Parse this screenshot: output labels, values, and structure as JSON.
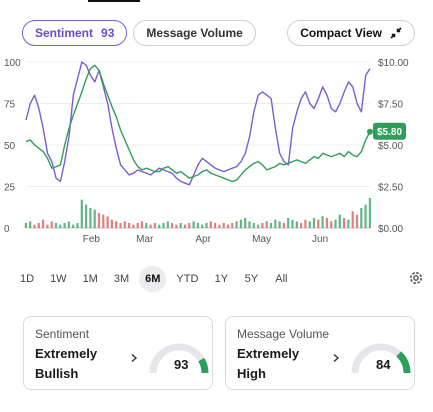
{
  "tabs": [
    {
      "label": "Sentiment",
      "count": "93",
      "active": true
    },
    {
      "label": "Message Volume",
      "active": false
    }
  ],
  "compact_view": {
    "label": "Compact View",
    "icon": "collapse-arrows-icon"
  },
  "chart_data": {
    "type": "line",
    "x_labels": [
      "Feb",
      "Mar",
      "Apr",
      "May",
      "Jun"
    ],
    "left_axis": {
      "ticks": [
        "100",
        "75",
        "50",
        "25",
        "0"
      ],
      "range": [
        0,
        100
      ]
    },
    "right_axis": {
      "ticks": [
        "$10.00",
        "$7.50",
        "$5.00",
        "$2.50",
        "$0.00"
      ],
      "range": [
        0,
        10
      ]
    },
    "price_label": "$5.80",
    "series": [
      {
        "role": "sentiment",
        "color": "#7b5cd6",
        "values": [
          65,
          75,
          80,
          72,
          60,
          45,
          40,
          30,
          28,
          40,
          55,
          80,
          90,
          100,
          98,
          92,
          88,
          95,
          85,
          75,
          60,
          48,
          38,
          35,
          32,
          33,
          35,
          34,
          33,
          32,
          34,
          36,
          35,
          34,
          33,
          30,
          28,
          27,
          26,
          32,
          38,
          42,
          40,
          38,
          36,
          35,
          34,
          35,
          36,
          37,
          40,
          45,
          55,
          70,
          80,
          82,
          80,
          78,
          60,
          45,
          40,
          38,
          60,
          70,
          78,
          82,
          75,
          72,
          78,
          85,
          80,
          72,
          70,
          75,
          82,
          88,
          85,
          75,
          70,
          92,
          96
        ]
      },
      {
        "role": "price",
        "color": "#2e9e5b",
        "values": [
          5.2,
          5.3,
          5.0,
          4.8,
          4.6,
          4.2,
          3.6,
          3.7,
          3.8,
          5.0,
          6.0,
          6.8,
          7.5,
          8.2,
          9.0,
          9.6,
          9.8,
          9.5,
          8.7,
          8.0,
          7.3,
          6.7,
          5.9,
          5.3,
          4.7,
          4.1,
          3.7,
          3.5,
          3.6,
          3.5,
          3.4,
          3.4,
          3.6,
          3.7,
          3.5,
          3.3,
          3.4,
          3.2,
          3.0,
          3.1,
          3.2,
          3.4,
          3.5,
          3.3,
          3.2,
          3.1,
          3.0,
          2.9,
          2.8,
          2.9,
          3.2,
          3.5,
          3.7,
          3.9,
          4.0,
          3.8,
          3.5,
          3.6,
          3.7,
          3.9,
          3.8,
          3.9,
          4.0,
          4.1,
          4.0,
          3.9,
          4.1,
          4.3,
          4.2,
          4.5,
          4.4,
          4.3,
          4.4,
          4.5,
          4.3,
          4.6,
          4.4,
          4.3,
          4.6,
          5.3,
          5.8
        ]
      }
    ],
    "volume": [
      3,
      4,
      2,
      3,
      5,
      2,
      4,
      3,
      2,
      3,
      4,
      2,
      3,
      17,
      14,
      12,
      11,
      9,
      8,
      7,
      5,
      4,
      3,
      4,
      3,
      2,
      3,
      4,
      3,
      2,
      3,
      2,
      3,
      4,
      3,
      2,
      3,
      2,
      3,
      4,
      3,
      2,
      3,
      4,
      3,
      2,
      3,
      2,
      3,
      4,
      5,
      6,
      4,
      3,
      2,
      3,
      4,
      3,
      5,
      4,
      3,
      6,
      5,
      4,
      3,
      5,
      4,
      6,
      5,
      7,
      6,
      4,
      5,
      8,
      6,
      5,
      10,
      8,
      12,
      14,
      18
    ]
  },
  "time_ranges": [
    "1D",
    "1W",
    "1M",
    "3M",
    "6M",
    "YTD",
    "1Y",
    "5Y",
    "All"
  ],
  "active_range": "6M",
  "cards": [
    {
      "title": "Sentiment",
      "value_line1": "Extremely",
      "value_line2": "Bullish",
      "score": "93",
      "score_value": 93
    },
    {
      "title": "Message Volume",
      "value_line1": "Extremely",
      "value_line2": "High",
      "score": "84",
      "score_value": 84
    }
  ],
  "colors": {
    "sentiment": "#7b5cd6",
    "price": "#2e9e5b",
    "volume_up": "#2e9e5b",
    "volume_down": "#d9534f",
    "gauge_track": "#e6e6ea"
  }
}
